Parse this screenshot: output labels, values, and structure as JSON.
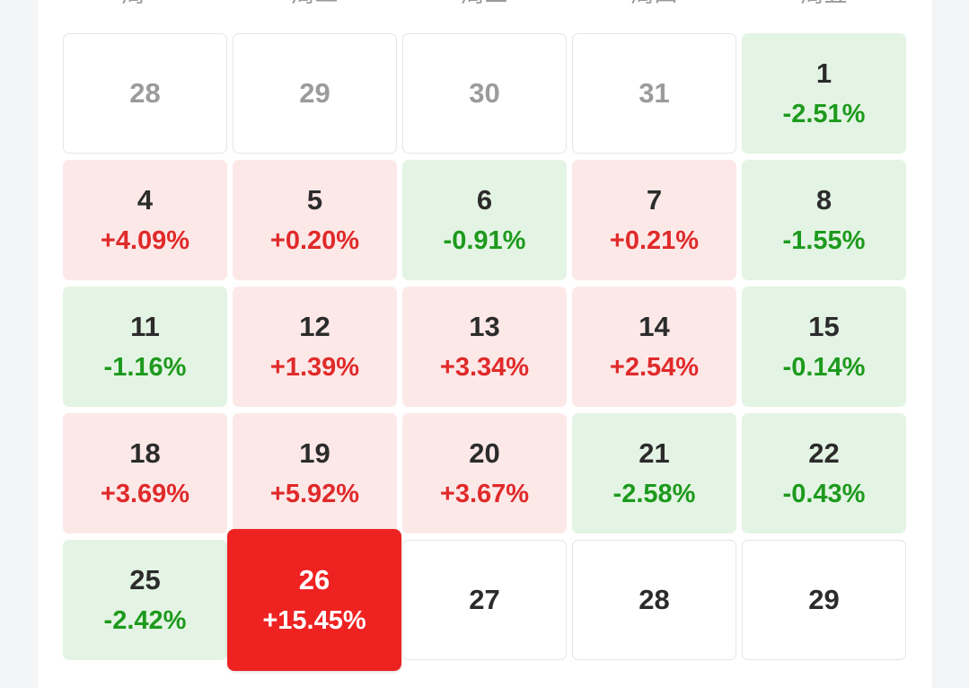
{
  "weekdays": [
    "周一",
    "周二",
    "周三",
    "周四",
    "周五"
  ],
  "colors": {
    "up_bg": "#fde8e8",
    "up_text": "#e02a2a",
    "down_bg": "#e4f4e4",
    "down_text": "#1d9a1d",
    "highlight_bg": "#ef2222",
    "highlight_text": "#ffffff"
  },
  "weeks": [
    [
      {
        "day": "28",
        "change": "",
        "trend": "prev"
      },
      {
        "day": "29",
        "change": "",
        "trend": "prev"
      },
      {
        "day": "30",
        "change": "",
        "trend": "prev"
      },
      {
        "day": "31",
        "change": "",
        "trend": "prev"
      },
      {
        "day": "1",
        "change": "-2.51%",
        "trend": "down"
      }
    ],
    [
      {
        "day": "4",
        "change": "+4.09%",
        "trend": "up"
      },
      {
        "day": "5",
        "change": "+0.20%",
        "trend": "up"
      },
      {
        "day": "6",
        "change": "-0.91%",
        "trend": "down"
      },
      {
        "day": "7",
        "change": "+0.21%",
        "trend": "up"
      },
      {
        "day": "8",
        "change": "-1.55%",
        "trend": "down"
      }
    ],
    [
      {
        "day": "11",
        "change": "-1.16%",
        "trend": "down"
      },
      {
        "day": "12",
        "change": "+1.39%",
        "trend": "up"
      },
      {
        "day": "13",
        "change": "+3.34%",
        "trend": "up"
      },
      {
        "day": "14",
        "change": "+2.54%",
        "trend": "up"
      },
      {
        "day": "15",
        "change": "-0.14%",
        "trend": "down"
      }
    ],
    [
      {
        "day": "18",
        "change": "+3.69%",
        "trend": "up"
      },
      {
        "day": "19",
        "change": "+5.92%",
        "trend": "up"
      },
      {
        "day": "20",
        "change": "+3.67%",
        "trend": "up"
      },
      {
        "day": "21",
        "change": "-2.58%",
        "trend": "down"
      },
      {
        "day": "22",
        "change": "-0.43%",
        "trend": "down"
      }
    ],
    [
      {
        "day": "25",
        "change": "-2.42%",
        "trend": "down"
      },
      {
        "day": "26",
        "change": "+15.45%",
        "trend": "hot"
      },
      {
        "day": "27",
        "change": "",
        "trend": "future"
      },
      {
        "day": "28",
        "change": "",
        "trend": "future"
      },
      {
        "day": "29",
        "change": "",
        "trend": "future"
      }
    ]
  ]
}
